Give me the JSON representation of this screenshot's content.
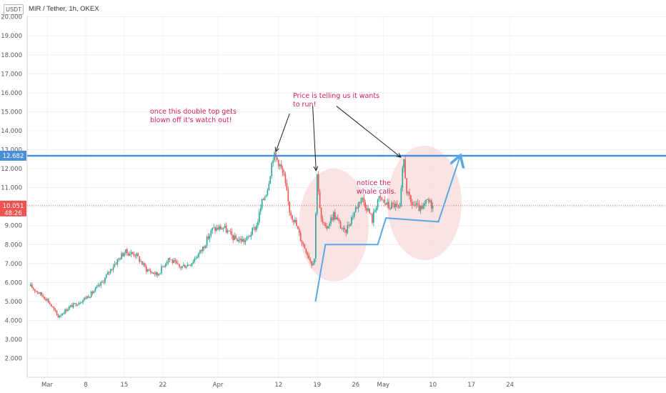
{
  "header": {
    "badge": "USDT",
    "title": "MIR / Tether, 1h, OKEX"
  },
  "chart_data": {
    "type": "candlestick",
    "y_axis": {
      "ticks": [
        2000,
        3000,
        4000,
        5000,
        6000,
        7000,
        8000,
        9000,
        10000,
        11000,
        12000,
        13000,
        14000,
        15000,
        16000,
        17000,
        18000,
        19000,
        20000
      ],
      "range": [
        1500,
        20500
      ],
      "position": "left",
      "grid": true
    },
    "x_axis": {
      "ticks": [
        {
          "label": "Mar",
          "day": 0
        },
        {
          "label": "8",
          "day": 7
        },
        {
          "label": "15",
          "day": 14
        },
        {
          "label": "22",
          "day": 21
        },
        {
          "label": "Apr",
          "day": 31
        },
        {
          "label": "12",
          "day": 42
        },
        {
          "label": "19",
          "day": 49
        },
        {
          "label": "26",
          "day": 56
        },
        {
          "label": "May",
          "day": 61
        },
        {
          "label": "10",
          "day": 70
        },
        {
          "label": "17",
          "day": 77
        },
        {
          "label": "24",
          "day": 84
        }
      ]
    },
    "price_path": [
      [
        -3,
        5800
      ],
      [
        0,
        5100
      ],
      [
        2,
        4200
      ],
      [
        4,
        4700
      ],
      [
        6,
        5000
      ],
      [
        8,
        5400
      ],
      [
        10,
        6000
      ],
      [
        12,
        6900
      ],
      [
        14,
        7600
      ],
      [
        16,
        7500
      ],
      [
        18,
        6700
      ],
      [
        20,
        6400
      ],
      [
        22,
        7300
      ],
      [
        24,
        6800
      ],
      [
        26,
        7000
      ],
      [
        28,
        7700
      ],
      [
        30,
        8800
      ],
      [
        32,
        8900
      ],
      [
        34,
        8300
      ],
      [
        36,
        8200
      ],
      [
        38,
        9000
      ],
      [
        39,
        10200
      ],
      [
        40,
        11000
      ],
      [
        41,
        12700
      ],
      [
        42,
        12400
      ],
      [
        43,
        11500
      ],
      [
        44,
        9800
      ],
      [
        45,
        9200
      ],
      [
        46,
        8300
      ],
      [
        47,
        7700
      ],
      [
        48,
        7000
      ],
      [
        48.5,
        7300
      ],
      [
        49,
        11900
      ],
      [
        49.6,
        9400
      ],
      [
        50.5,
        8800
      ],
      [
        52,
        9600
      ],
      [
        54,
        8600
      ],
      [
        56,
        9900
      ],
      [
        57,
        10500
      ],
      [
        58,
        10000
      ],
      [
        59,
        9300
      ],
      [
        60,
        10400
      ],
      [
        61,
        10300
      ],
      [
        62,
        10000
      ],
      [
        63,
        10100
      ],
      [
        64,
        9800
      ],
      [
        64.7,
        12600
      ],
      [
        65.3,
        10700
      ],
      [
        66,
        10200
      ],
      [
        67,
        10000
      ],
      [
        68,
        9800
      ],
      [
        69,
        10300
      ],
      [
        70,
        10050
      ]
    ],
    "candles_note": "hourly candles following price_path",
    "colors": {
      "up": "#26a69a",
      "down": "#ef5350",
      "level_line": "#4a90d9",
      "ellipse": "#f8d7d7",
      "annotation": "#d81b60"
    },
    "level": {
      "value": 12682,
      "label": "12.682"
    },
    "current": {
      "value": 10051,
      "label": "10.051",
      "countdown": "48:26"
    },
    "annotations": [
      {
        "lines": [
          "once this double top gets",
          "blown off it's watch out!"
        ]
      },
      {
        "lines": [
          "Price is telling us it wants",
          "to run!"
        ]
      },
      {
        "lines": [
          "notice the",
          "whale calls."
        ]
      }
    ],
    "blue_path": [
      [
        48.7,
        5000
      ],
      [
        50.5,
        8000
      ],
      [
        60,
        8000
      ],
      [
        61.5,
        9400
      ],
      [
        71,
        9200
      ],
      [
        75,
        12700
      ]
    ],
    "arrows": [
      {
        "from": [
          44,
          14900
        ],
        "to": [
          41.5,
          12900
        ]
      },
      {
        "from": [
          48.2,
          15300
        ],
        "to": [
          48.8,
          11900
        ]
      },
      {
        "from": [
          52.5,
          15300
        ],
        "to": [
          64.2,
          12600
        ]
      }
    ]
  }
}
